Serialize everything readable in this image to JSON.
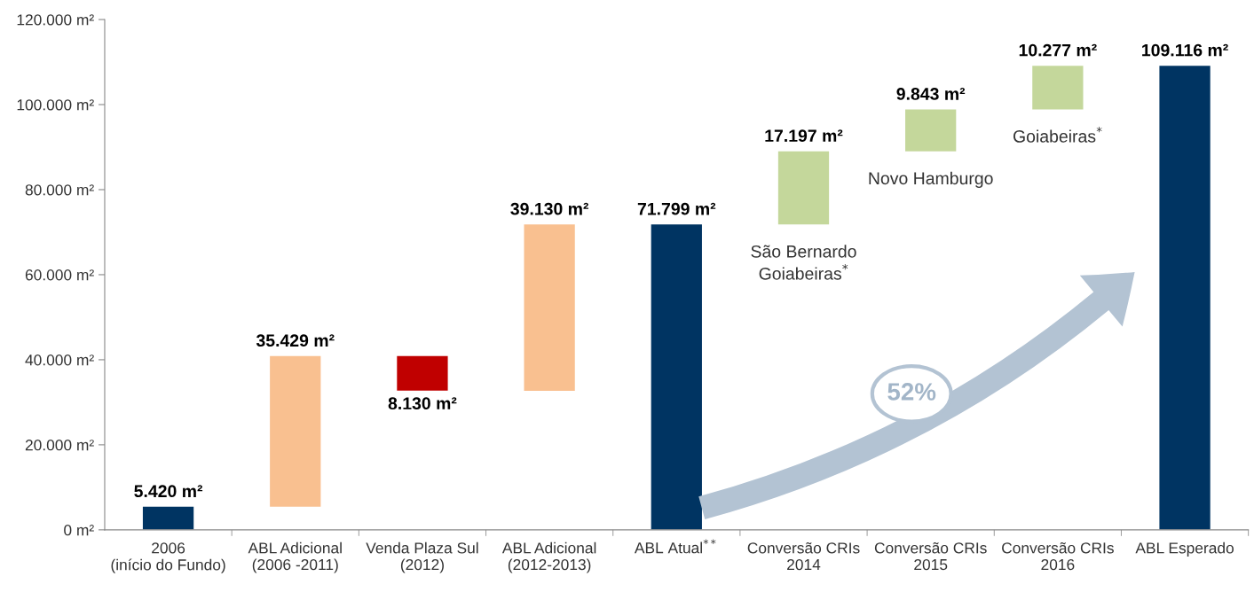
{
  "chart_data": {
    "type": "bar",
    "categories": [
      "2006\n(início do Fundo)",
      "ABL Adicional\n(2006 -2011)",
      "Venda Plaza Sul\n(2012)",
      "ABL Adicional\n(2012-2013)",
      "ABL Atual$^{**}$",
      "Conversão CRIs\n2014",
      "Conversão CRIs\n2015",
      "Conversão CRIs\n2016",
      "ABL Esperado"
    ],
    "values": [
      5420,
      35429,
      8130,
      39130,
      71799,
      17197,
      9843,
      10277,
      109116
    ],
    "base": [
      0,
      5420,
      32719,
      32669,
      0,
      71799,
      88996,
      98839,
      0
    ],
    "colors": [
      "#003462",
      "#f9c090",
      "#c00000",
      "#f9c090",
      "#003462",
      "#c4d79b",
      "#c4d79b",
      "#c4d79b",
      "#003462"
    ],
    "value_labels": [
      "5.420 m²",
      "35.429 m²",
      "8.130 m²",
      "39.130 m²",
      "71.799 m²",
      "17.197 m²",
      "9.843 m²",
      "10.277 m²",
      "109.116 m²"
    ],
    "ylim": [
      0,
      120000
    ],
    "yticks": [
      {
        "value": 0,
        "label": "0 m²"
      },
      {
        "value": 20000,
        "label": "20.000 m²"
      },
      {
        "value": 40000,
        "label": "40.000 m²"
      },
      {
        "value": 60000,
        "label": "60.000 m²"
      },
      {
        "value": 80000,
        "label": "80.000 m²"
      },
      {
        "value": 100000,
        "label": "100.000 m²"
      },
      {
        "value": 120000,
        "label": "120.000 m²"
      }
    ],
    "grid": false,
    "legend": false,
    "annotations": [
      "São Bernardo\nGoiabeiras$^{*}$",
      "Novo Hamburgo",
      "Goiabeiras$^{*}$",
      "52%"
    ]
  }
}
